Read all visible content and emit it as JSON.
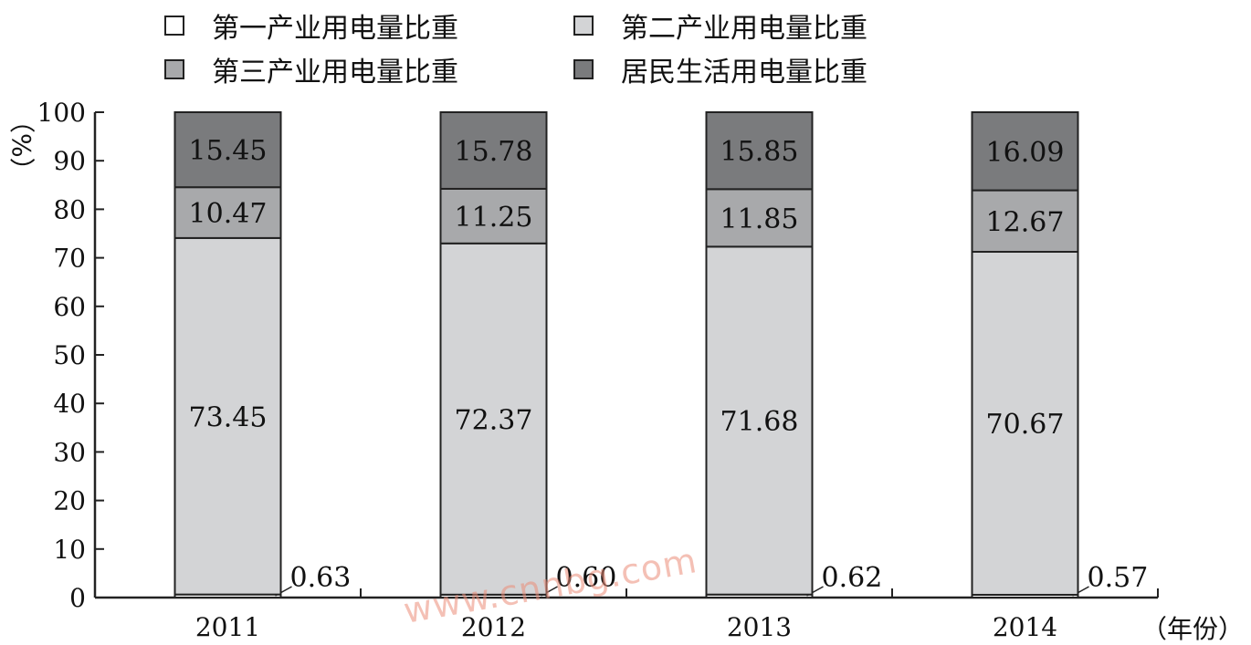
{
  "legend": [
    {
      "label": "第一产业用电量比重",
      "color": "#ffffff"
    },
    {
      "label": "第二产业用电量比重",
      "color": "#d3d4d6"
    },
    {
      "label": "第三产业用电量比重",
      "color": "#a8a9ab"
    },
    {
      "label": "居民生活用电量比重",
      "color": "#7a7b7d"
    }
  ],
  "watermark": "www.cnnbg.com",
  "chart_data": {
    "type": "bar",
    "stacked": true,
    "categories": [
      "2011",
      "2012",
      "2013",
      "2014"
    ],
    "series": [
      {
        "name": "第一产业用电量比重",
        "values": [
          0.63,
          0.6,
          0.62,
          0.57
        ],
        "labels": [
          "0.63",
          "0.60",
          "0.62",
          "0.57"
        ],
        "color": "#ffffff"
      },
      {
        "name": "第二产业用电量比重",
        "values": [
          73.45,
          72.37,
          71.68,
          70.67
        ],
        "labels": [
          "73.45",
          "72.37",
          "71.68",
          "70.67"
        ],
        "color": "#d3d4d6"
      },
      {
        "name": "第三产业用电量比重",
        "values": [
          10.47,
          11.25,
          11.85,
          12.67
        ],
        "labels": [
          "10.47",
          "11.25",
          "11.85",
          "12.67"
        ],
        "color": "#a8a9ab"
      },
      {
        "name": "居民生活用电量比重",
        "values": [
          15.45,
          15.78,
          15.85,
          16.09
        ],
        "labels": [
          "15.45",
          "15.78",
          "15.85",
          "16.09"
        ],
        "color": "#7a7b7d"
      }
    ],
    "ylim": [
      0,
      100
    ],
    "yticks": [
      "0",
      "10",
      "20",
      "30",
      "40",
      "50",
      "60",
      "70",
      "80",
      "90",
      "100"
    ],
    "ylabel": "（%）",
    "xlabel": "（年份）",
    "grid": false,
    "legend_position": "top"
  }
}
